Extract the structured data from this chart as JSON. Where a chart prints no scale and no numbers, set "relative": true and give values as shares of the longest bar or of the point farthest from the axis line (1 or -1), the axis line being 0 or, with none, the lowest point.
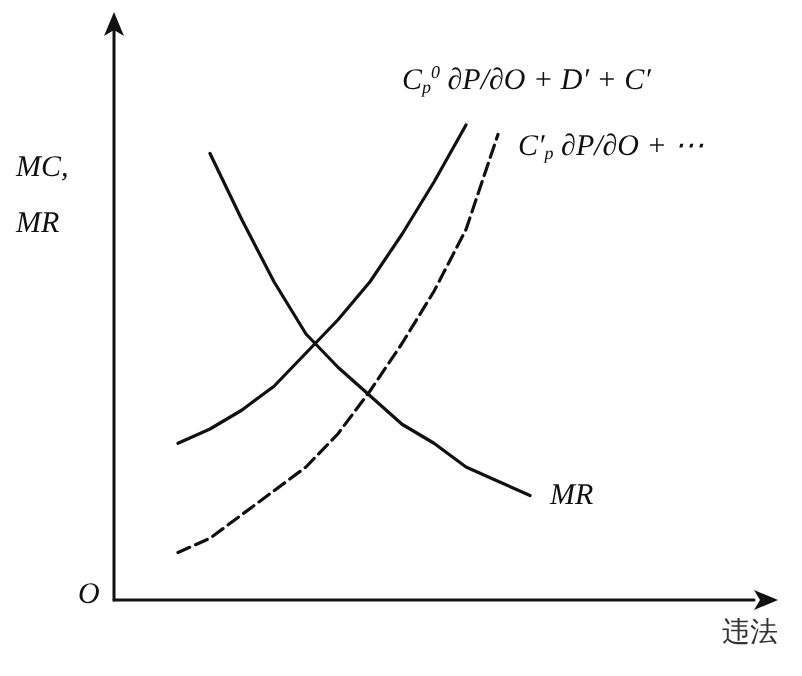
{
  "chart_data": {
    "type": "line",
    "relative": true,
    "ylabel": "MC,\nMR",
    "xlabel": "违法",
    "annotations": [
      "O"
    ],
    "legend": false,
    "grid": false,
    "marker": "none",
    "categories": [
      null,
      null,
      null,
      null,
      null,
      null,
      null,
      null,
      null,
      null,
      null,
      null,
      null,
      null,
      null,
      null,
      null,
      null,
      null,
      null,
      null
    ],
    "series": [
      {
        "name": "C$_{p}$$^{0}$ ∂P/∂O + D′ + C′",
        "color": "#111111",
        "line_style": "solid",
        "values": [
          null,
          null,
          0.33,
          0.36,
          0.4,
          0.45,
          0.52,
          0.59,
          0.67,
          0.77,
          0.88,
          1.0,
          null,
          null,
          null,
          null,
          null,
          null,
          null,
          null,
          null
        ]
      },
      {
        "name": "C′$_{p}$ ∂P/∂O + ⋯",
        "color": "#111111",
        "line_style": "dashed",
        "values": [
          null,
          null,
          0.1,
          0.13,
          0.18,
          0.23,
          0.28,
          0.35,
          0.44,
          0.54,
          0.65,
          0.78,
          0.98,
          null,
          null,
          null,
          null,
          null,
          null,
          null,
          null
        ]
      },
      {
        "name": "MR",
        "color": "#111111",
        "line_style": "solid",
        "values": [
          null,
          null,
          null,
          0.94,
          0.8,
          0.67,
          0.56,
          0.49,
          0.43,
          0.37,
          0.33,
          0.28,
          0.25,
          0.22,
          null,
          null,
          null,
          null,
          null,
          null,
          null
        ]
      }
    ]
  }
}
